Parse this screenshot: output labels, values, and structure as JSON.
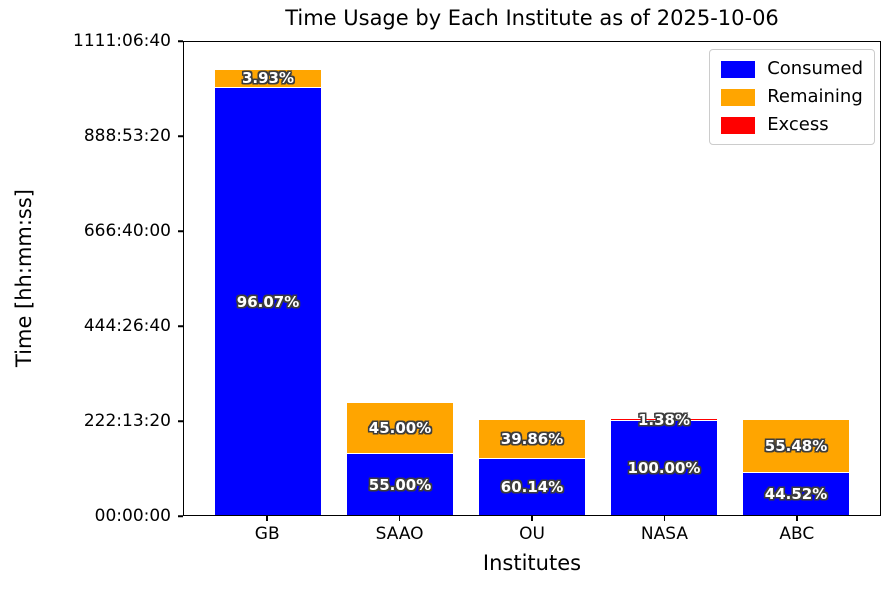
{
  "title": "Time Usage by Each Institute as of 2025-10-06",
  "axes": {
    "x_label": "Institutes",
    "y_label": "Time [hh:mm:ss]"
  },
  "chart_data": {
    "type": "bar",
    "stacked": true,
    "title": "Time Usage by Each Institute as of 2025-10-06",
    "xlabel": "Institutes",
    "ylabel": "Time [hh:mm:ss]",
    "categories": [
      "GB",
      "SAAO",
      "OU",
      "NASA",
      "ABC"
    ],
    "y_axis": {
      "unit": "seconds",
      "min": 0,
      "max": 4000000,
      "tick_seconds": [
        0,
        800000,
        1600000,
        2400000,
        3200000,
        4000000
      ],
      "tick_labels": [
        "00:00:00",
        "222:13:20",
        "444:26:40",
        "666:40:00",
        "888:53:20",
        "1111:06:40"
      ]
    },
    "allocation_seconds_est": [
      3758400,
      936000,
      792000,
      792000,
      792000
    ],
    "series": [
      {
        "name": "Consumed",
        "color": "#0000ff",
        "percent_of_allocation": [
          96.07,
          55.0,
          60.14,
          100.0,
          44.52
        ],
        "seconds_est": [
          3610700,
          514800,
          476300,
          792000,
          352600
        ],
        "labels": [
          "96.07%",
          "55.00%",
          "60.14%",
          "100.00%",
          "44.52%"
        ]
      },
      {
        "name": "Remaining",
        "color": "#ffa500",
        "percent_of_allocation": [
          3.93,
          45.0,
          39.86,
          0,
          55.48
        ],
        "seconds_est": [
          147700,
          421200,
          315700,
          0,
          439400
        ],
        "labels": [
          "3.93%",
          "45.00%",
          "39.86%",
          "",
          "55.48%"
        ]
      },
      {
        "name": "Excess",
        "color": "#ff0000",
        "percent_of_allocation": [
          0,
          0,
          0,
          1.38,
          0
        ],
        "seconds_est": [
          0,
          0,
          0,
          10900,
          0
        ],
        "labels": [
          "",
          "",
          "",
          "1.38%",
          ""
        ]
      }
    ],
    "legend_position": "upper right",
    "grid": false
  }
}
